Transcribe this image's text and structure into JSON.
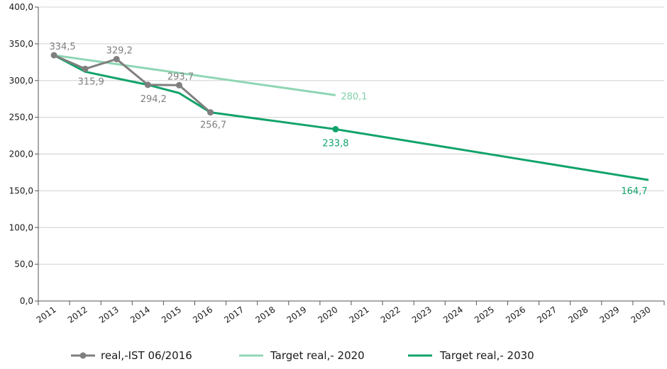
{
  "chart_data": {
    "type": "line",
    "categories": [
      "2011",
      "2012",
      "2013",
      "2014",
      "2015",
      "2016",
      "2017",
      "2018",
      "2019",
      "2020",
      "2021",
      "2022",
      "2023",
      "2024",
      "2025",
      "2026",
      "2027",
      "2028",
      "2029",
      "2030"
    ],
    "ylim": [
      0,
      400
    ],
    "yticks": [
      "0,0",
      "50,0",
      "100,0",
      "150,0",
      "200,0",
      "250,0",
      "300,0",
      "350,0",
      "400,0"
    ],
    "grid": true,
    "legend_position": "bottom",
    "series": [
      {
        "name": "real,-IST 06/2016",
        "color": "#7f7f7f",
        "marker": "circle",
        "x": [
          "2011",
          "2012",
          "2013",
          "2014",
          "2015",
          "2016"
        ],
        "values": [
          334.5,
          315.9,
          329.2,
          294.2,
          293.7,
          256.7
        ],
        "labels": [
          "334,5",
          "315,9",
          "329,2",
          "294,2",
          "293,7",
          "256,7"
        ]
      },
      {
        "name": "Target real,- 2020",
        "color": "#8fd6b4",
        "x": [
          "2011",
          "2020"
        ],
        "values": [
          334.5,
          280.1
        ],
        "labels": [
          "",
          "280,1"
        ]
      },
      {
        "name": "Target real,- 2030",
        "color": "#12a36a",
        "x": [
          "2011",
          "2012",
          "2013",
          "2014",
          "2015",
          "2016",
          "2020",
          "2030"
        ],
        "values": [
          334.5,
          312.0,
          303.0,
          294.2,
          283.0,
          256.7,
          233.8,
          164.7
        ],
        "labels": [
          "",
          "",
          "",
          "",
          "",
          "",
          "233,8",
          "164,7"
        ],
        "marker_points": [
          "2020"
        ]
      }
    ]
  }
}
